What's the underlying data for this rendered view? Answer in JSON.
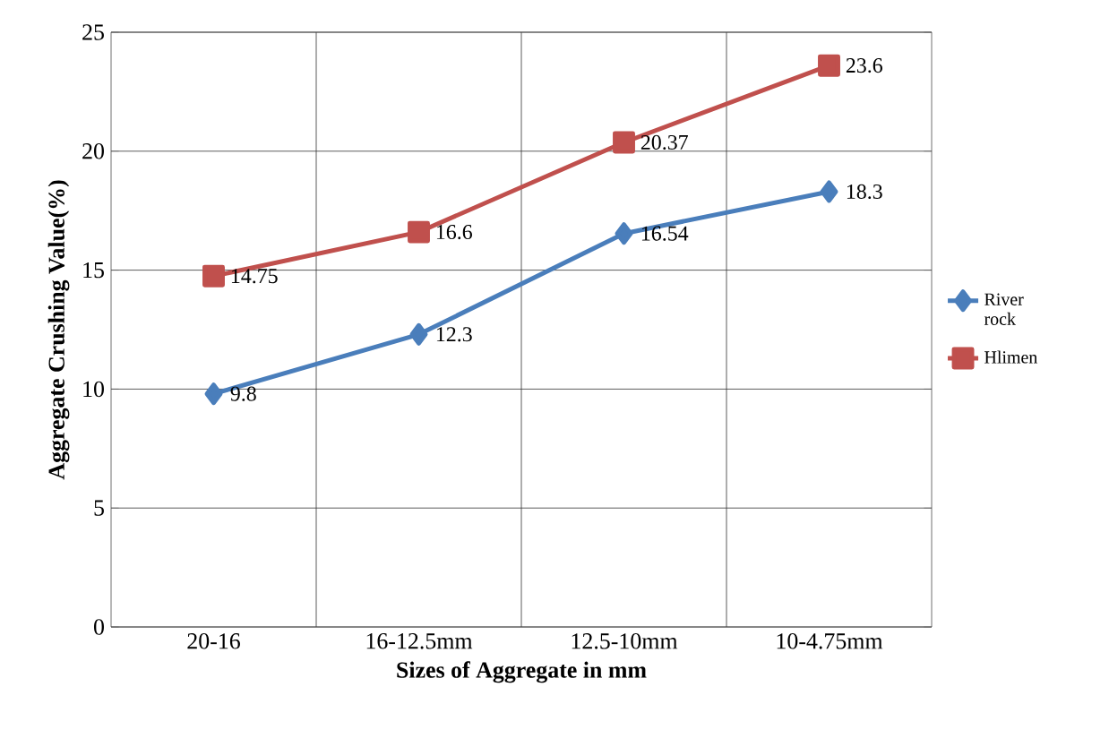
{
  "chart_data": {
    "type": "line",
    "xlabel": "Sizes of Aggregate in mm",
    "ylabel": "Aggregate Crushing Value(%)",
    "categories": [
      "20-16",
      "16-12.5mm",
      "12.5-10mm",
      "10-4.75mm"
    ],
    "series": [
      {
        "name": "River rock",
        "color": "#4a7ebb",
        "marker": "diamond",
        "values": [
          9.8,
          12.3,
          16.54,
          18.3
        ]
      },
      {
        "name": "Hlimen",
        "color": "#c0504d",
        "marker": "square",
        "values": [
          14.75,
          16.6,
          20.37,
          23.6
        ]
      }
    ],
    "ylim": [
      0,
      25
    ],
    "yticks": [
      0,
      5,
      10,
      15,
      20,
      25
    ],
    "grid": true,
    "legend": "right",
    "data_labels": true
  }
}
